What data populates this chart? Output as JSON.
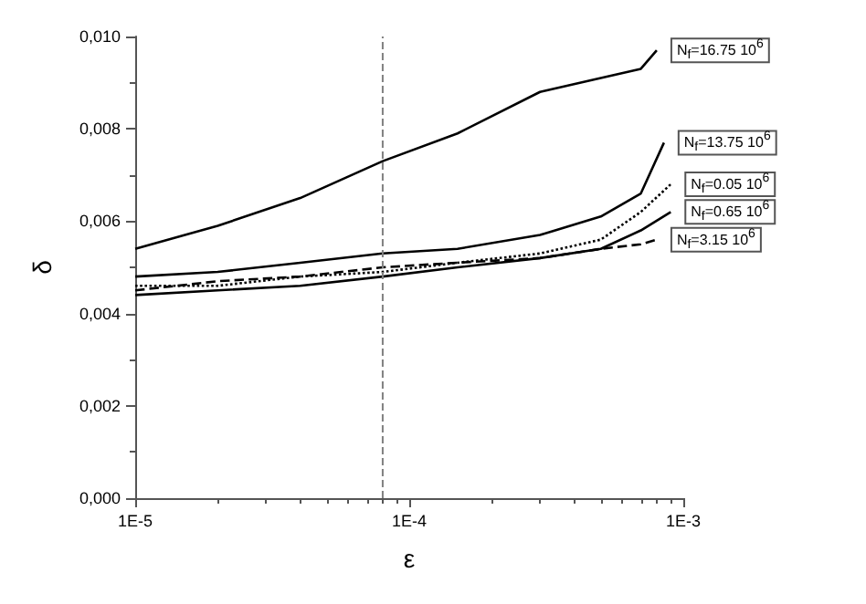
{
  "chart_data": {
    "type": "line",
    "xlabel": "ε",
    "ylabel": "δ",
    "log": "x",
    "xlim": [
      1e-05,
      0.001
    ],
    "xticks": [
      {
        "value": 1e-05,
        "label": "1E-5"
      },
      {
        "value": 0.0001,
        "label": "1E-4"
      },
      {
        "value": 0.001,
        "label": "1E-3"
      }
    ],
    "ylim": [
      0,
      0.01
    ],
    "yticks": [
      {
        "value": 0,
        "label": "0,000"
      },
      {
        "value": 0.002,
        "label": "0,002"
      },
      {
        "value": 0.004,
        "label": "0,004"
      },
      {
        "value": 0.006,
        "label": "0,006"
      },
      {
        "value": 0.008,
        "label": "0,008"
      },
      {
        "value": 0.01,
        "label": "0,010"
      }
    ],
    "grid": false,
    "legend": false,
    "marker": "none",
    "x": [
      1e-05,
      2e-05,
      4e-05,
      8e-05,
      0.00015,
      0.0003,
      0.0005,
      0.0007,
      0.0009
    ],
    "series": [
      {
        "name": "N$_{f}$=16.75 10$^{6}$",
        "color": "#000000",
        "line_style": "solid",
        "x": [
          1e-05,
          2e-05,
          4e-05,
          8e-05,
          0.00015,
          0.0003,
          0.0005,
          0.0007,
          0.0008
        ],
        "values": [
          0.0054,
          0.0059,
          0.0065,
          0.0073,
          0.0079,
          0.0088,
          0.0091,
          0.0093,
          0.0097
        ]
      },
      {
        "name": "N$_{f}$=13.75 10$^{6}$",
        "color": "#000000",
        "line_style": "solid",
        "x": [
          1e-05,
          2e-05,
          4e-05,
          8e-05,
          0.00015,
          0.0003,
          0.0005,
          0.0007,
          0.00085
        ],
        "values": [
          0.0048,
          0.0049,
          0.0051,
          0.0053,
          0.0054,
          0.0057,
          0.0061,
          0.0066,
          0.0077
        ]
      },
      {
        "name": "N$_{f}$=0.05 10$^{6}$",
        "color": "#000000",
        "line_style": "dotted",
        "values": [
          0.0046,
          0.0046,
          0.0048,
          0.0049,
          0.0051,
          0.0053,
          0.0056,
          0.0062,
          0.0068
        ]
      },
      {
        "name": "N$_{f}$=0.65 10$^{6}$",
        "color": "#000000",
        "line_style": "solid",
        "values": [
          0.0044,
          0.0045,
          0.0046,
          0.0048,
          0.005,
          0.0052,
          0.0054,
          0.0058,
          0.0062
        ]
      },
      {
        "name": "N$_{f}$=3.15 10$^{6}$",
        "color": "#000000",
        "line_style": "dashed",
        "x": [
          1e-05,
          2e-05,
          4e-05,
          8e-05,
          0.00015,
          0.0003,
          0.0005,
          0.0007,
          0.0008
        ],
        "values": [
          0.0045,
          0.0047,
          0.0048,
          0.005,
          0.0051,
          0.0052,
          0.0054,
          0.0055,
          0.0056
        ]
      }
    ],
    "ref_lines": [
      {
        "axis": "x",
        "value": 8e-05,
        "color": "#808080",
        "line_style": "dashed"
      }
    ]
  }
}
